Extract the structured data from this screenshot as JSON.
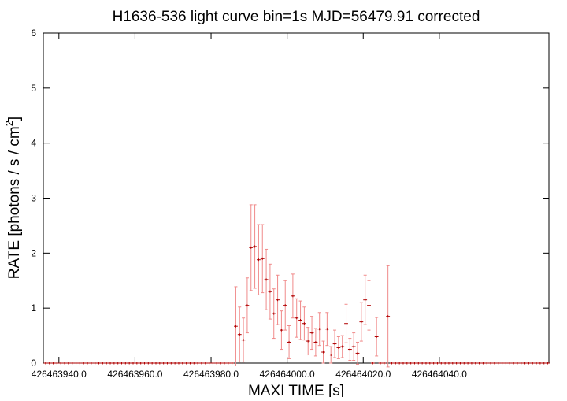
{
  "chart_data": {
    "type": "errorbar",
    "title": "H1636-536 light curve bin=1s MJD=56479.91 corrected",
    "x_label": "MAXI TIME [s]",
    "y_label": "RATE [photons / s / cm",
    "y_label_sup": "2",
    "y_label_end": "]",
    "xlim": [
      426463935.9,
      426464068.8
    ],
    "ylim": [
      0,
      6
    ],
    "xticks": [
      {
        "value": 426463940,
        "label": "426463940.0"
      },
      {
        "value": 426463960,
        "label": "426463960.0"
      },
      {
        "value": 426463980,
        "label": "426463980.0"
      },
      {
        "value": 426464000,
        "label": "426464000.0"
      },
      {
        "value": 426464020,
        "label": "426464020.0"
      },
      {
        "value": 426464040,
        "label": "426464040.0"
      }
    ],
    "yticks": [
      0,
      1,
      2,
      3,
      4,
      5,
      6
    ],
    "color": "#b00000",
    "error_color": "#f08a8a",
    "x": [
      426463936.5,
      426463937.5,
      426463938.5,
      426463939.5,
      426463940.5,
      426463941.5,
      426463942.5,
      426463943.5,
      426463944.5,
      426463945.5,
      426463946.5,
      426463947.5,
      426463948.5,
      426463949.5,
      426463950.5,
      426463951.5,
      426463952.5,
      426463953.5,
      426463954.5,
      426463955.5,
      426463956.5,
      426463957.5,
      426463958.5,
      426463959.5,
      426463960.5,
      426463961.5,
      426463962.5,
      426463963.5,
      426463964.5,
      426463965.5,
      426463966.5,
      426463967.5,
      426463968.5,
      426463969.5,
      426463970.5,
      426463971.5,
      426463972.5,
      426463973.5,
      426463974.5,
      426463975.5,
      426463976.5,
      426463977.5,
      426463978.5,
      426463979.5,
      426463980.5,
      426463981.5,
      426463982.5,
      426463983.5,
      426463984.5,
      426463985.5,
      426463986.5,
      426463987.5,
      426463988.5,
      426463989.5,
      426463990.5,
      426463991.5,
      426463992.5,
      426463993.5,
      426463994.5,
      426463995.5,
      426463996.5,
      426463997.5,
      426463998.5,
      426463999.5,
      426464000.5,
      426464001.5,
      426464002.5,
      426464003.5,
      426464004.5,
      426464005.5,
      426464006.5,
      426464007.5,
      426464008.5,
      426464009.5,
      426464010.5,
      426464011.5,
      426464012.5,
      426464013.5,
      426464014.5,
      426464015.5,
      426464016.5,
      426464017.5,
      426464018.5,
      426464019.5,
      426464020.5,
      426464021.5,
      426464022.5,
      426464023.5,
      426464024.5,
      426464025.5,
      426464026.5,
      426464027.5,
      426464028.5,
      426464029.5,
      426464030.5,
      426464031.5,
      426464032.5,
      426464033.5,
      426464034.5,
      426464035.5,
      426464036.5,
      426464037.5,
      426464038.5,
      426464039.5,
      426464040.5,
      426464041.5,
      426464042.5,
      426464043.5,
      426464044.5,
      426464045.5,
      426464046.5,
      426464047.5,
      426464048.5,
      426464049.5,
      426464050.5,
      426464051.5,
      426464052.5,
      426464053.5,
      426464054.5,
      426464055.5,
      426464056.5,
      426464057.5,
      426464058.5,
      426464059.5,
      426464060.5,
      426464061.5,
      426464062.5,
      426464063.5,
      426464064.5,
      426464065.5,
      426464066.5,
      426464067.5,
      426464068.5
    ],
    "values": [
      0,
      0,
      0,
      0,
      0,
      0,
      0,
      0,
      0,
      0,
      0,
      0,
      0,
      0,
      0,
      0,
      0,
      0,
      0,
      0,
      0,
      0,
      0,
      0,
      0,
      0,
      0,
      0,
      0,
      0,
      0,
      0,
      0,
      0,
      0,
      0,
      0,
      0,
      0,
      0,
      0,
      0,
      0,
      0,
      0,
      0,
      0,
      0,
      0,
      0,
      0.67,
      0.52,
      0.42,
      1.05,
      2.1,
      2.12,
      1.88,
      1.9,
      1.52,
      1.3,
      0.9,
      1.15,
      0.6,
      1.05,
      0.38,
      1.22,
      0.82,
      0.78,
      0.72,
      0.4,
      0.55,
      0.38,
      0.62,
      0.2,
      0.62,
      0.15,
      0.35,
      0.28,
      0.3,
      0.72,
      0.25,
      0.3,
      0.18,
      0.75,
      1.15,
      1.05,
      0,
      0.48,
      0,
      0,
      0.85,
      0,
      0,
      0,
      0,
      0,
      0,
      0,
      0,
      0,
      0,
      0,
      0,
      0,
      0,
      0,
      0,
      0,
      0,
      0,
      0,
      0,
      0,
      0,
      0,
      0,
      0,
      0,
      0,
      0,
      0,
      0,
      0,
      0,
      0,
      0,
      0,
      0,
      0,
      0,
      0,
      0,
      0
    ],
    "errors": [
      0,
      0,
      0,
      0,
      0,
      0,
      0,
      0,
      0,
      0,
      0,
      0,
      0,
      0,
      0,
      0,
      0,
      0,
      0,
      0,
      0,
      0,
      0,
      0,
      0,
      0,
      0,
      0,
      0,
      0,
      0,
      0,
      0,
      0,
      0,
      0,
      0,
      0,
      0,
      0,
      0,
      0,
      0,
      0,
      0,
      0,
      0,
      0,
      0,
      0,
      0.72,
      0.5,
      0.4,
      0.5,
      0.78,
      0.76,
      0.64,
      0.62,
      0.55,
      0.5,
      0.45,
      0.45,
      0.35,
      0.45,
      0.3,
      0.4,
      0.35,
      0.35,
      0.3,
      0.25,
      0.3,
      0.25,
      0.3,
      0.2,
      0.3,
      0.15,
      0.25,
      0.2,
      0.2,
      0.35,
      0.2,
      0.25,
      0.2,
      0.35,
      0.45,
      0.45,
      0,
      0.35,
      0,
      0,
      0.92,
      0,
      0,
      0,
      0,
      0,
      0,
      0,
      0,
      0,
      0,
      0,
      0,
      0,
      0,
      0,
      0,
      0,
      0,
      0,
      0,
      0,
      0,
      0,
      0,
      0,
      0,
      0,
      0,
      0,
      0,
      0,
      0,
      0,
      0,
      0,
      0,
      0,
      0,
      0,
      0,
      0,
      0
    ]
  }
}
